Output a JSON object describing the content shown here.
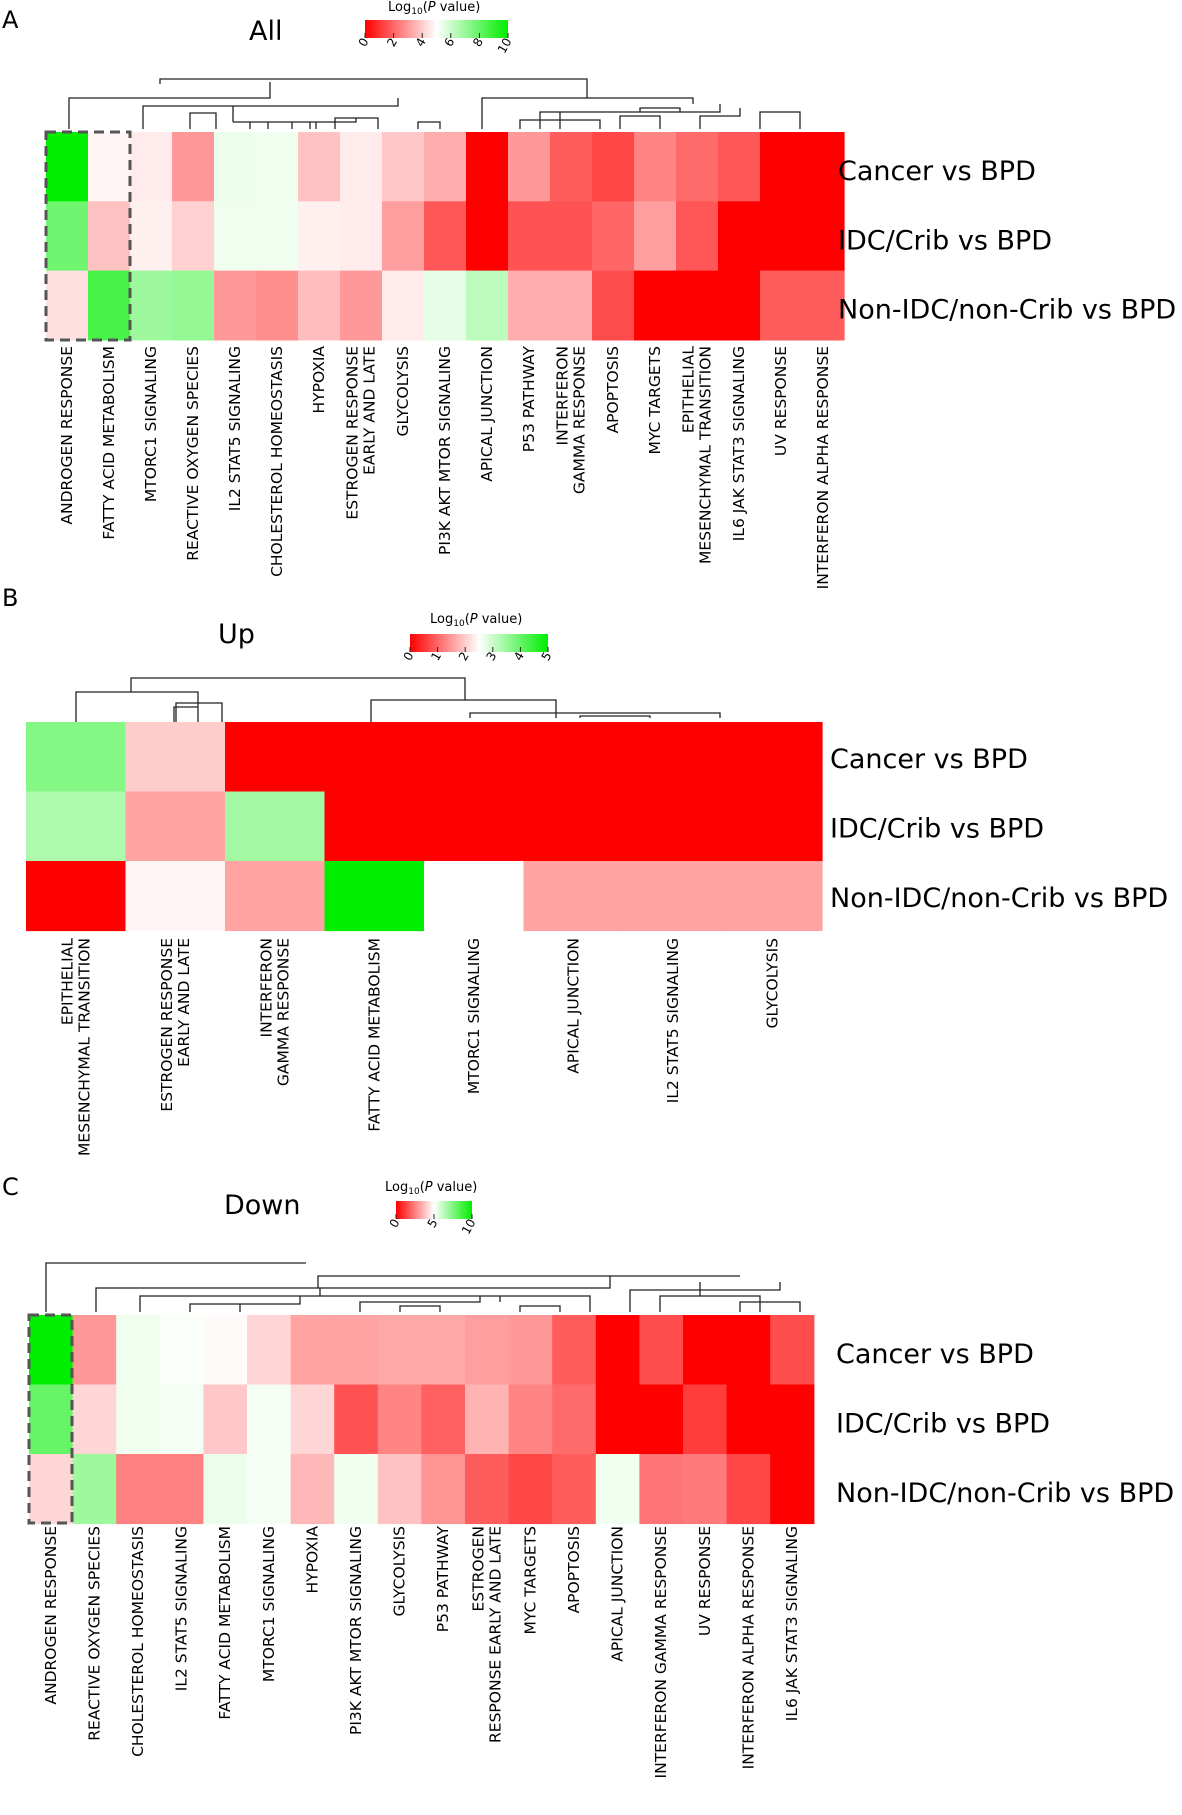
{
  "colors": {
    "low": "#ff0000",
    "mid": "#ffffff",
    "high": "#00ee00"
  },
  "chart_data": [
    {
      "type": "heatmap",
      "panel": "A",
      "title": "All",
      "legend": {
        "title_main": "Log",
        "title_sub": "10",
        "title_open": "(",
        "title_p": "P",
        "title_rest": " value)",
        "ticks": [
          0,
          2,
          4,
          6,
          8,
          10
        ],
        "range": [
          0,
          10
        ],
        "mid": 5
      },
      "rows": [
        "Cancer vs BPD",
        "IDC/Crib vs BPD",
        "Non-IDC/non-Crib vs BPD"
      ],
      "columns": [
        [
          "ANDROGEN RESPONSE"
        ],
        [
          "FATTY ACID METABOLISM"
        ],
        [
          "MTORC1 SIGNALING"
        ],
        [
          "REACTIVE OXYGEN SPECIES"
        ],
        [
          "IL2 STAT5 SIGNALING"
        ],
        [
          "CHOLESTEROL HOMEOSTASIS"
        ],
        [
          "HYPOXIA"
        ],
        [
          "ESTROGEN RESPONSE",
          "EARLY AND LATE"
        ],
        [
          "GLYCOLYSIS"
        ],
        [
          "PI3K AKT MTOR SIGNALING"
        ],
        [
          "APICAL JUNCTION"
        ],
        [
          "P53 PATHWAY"
        ],
        [
          "INTERFERON",
          "GAMMA RESPONSE"
        ],
        [
          "APOPTOSIS"
        ],
        [
          "MYC TARGETS"
        ],
        [
          "EPITHELIAL",
          "MESENCHYMAL TRANSITION"
        ],
        [
          "IL6 JAK STAT3 SIGNALING"
        ],
        [
          "UV RESPONSE"
        ],
        [
          "INTERFERON ALPHA RESPONSE"
        ]
      ],
      "values": [
        [
          10,
          4.8,
          4.6,
          3.0,
          5.4,
          5.3,
          3.8,
          4.6,
          3.9,
          3.4,
          0,
          3.0,
          1.8,
          1.4,
          2.6,
          2.1,
          1.7,
          0,
          0
        ],
        [
          7.8,
          3.8,
          4.7,
          4.1,
          5.3,
          5.3,
          4.7,
          4.6,
          3.1,
          1.7,
          0,
          1.6,
          1.6,
          2.0,
          3.1,
          1.7,
          0,
          0,
          0
        ],
        [
          4.4,
          8.6,
          6.9,
          7.1,
          3.0,
          2.8,
          3.7,
          3.0,
          4.6,
          5.5,
          6.3,
          3.4,
          3.4,
          1.5,
          0,
          0,
          0,
          1.8,
          1.8
        ]
      ],
      "highlighted_columns": [
        0,
        1
      ]
    },
    {
      "type": "heatmap",
      "panel": "B",
      "title": "Up",
      "legend": {
        "title_main": "Log",
        "title_sub": "10",
        "title_open": "(",
        "title_p": "P",
        "title_rest": " value)",
        "ticks": [
          0,
          1,
          2,
          3,
          4,
          5
        ],
        "range": [
          0,
          5
        ],
        "mid": 2.5
      },
      "rows": [
        "Cancer vs BPD",
        "IDC/Crib vs BPD",
        "Non-IDC/non-Crib vs BPD"
      ],
      "columns": [
        [
          "EPITHELIAL",
          "MESENCHYMAL TRANSITION"
        ],
        [
          "ESTROGEN RESPONSE",
          "EARLY AND LATE"
        ],
        [
          "INTERFERON",
          "GAMMA RESPONSE"
        ],
        [
          "FATTY ACID METABOLISM"
        ],
        [
          "MTORC1 SIGNALING"
        ],
        [
          "APICAL JUNCTION"
        ],
        [
          "IL2 STAT5 SIGNALING"
        ],
        [
          "GLYCOLYSIS"
        ]
      ],
      "values": [
        [
          3.7,
          2.0,
          0,
          0,
          0,
          0,
          0,
          0
        ],
        [
          3.3,
          1.6,
          3.4,
          0,
          0,
          0,
          0,
          0
        ],
        [
          0,
          2.4,
          1.6,
          5,
          null,
          1.6,
          1.6,
          1.6
        ]
      ]
    },
    {
      "type": "heatmap",
      "panel": "C",
      "title": "Down",
      "legend": {
        "title_main": "Log",
        "title_sub": "10",
        "title_open": "(",
        "title_p": "P",
        "title_rest": " value)",
        "ticks": [
          0,
          5,
          10
        ],
        "range": [
          0,
          10
        ],
        "mid": 5
      },
      "rows": [
        "Cancer vs BPD",
        "IDC/Crib vs BPD",
        "Non-IDC/non-Crib vs BPD"
      ],
      "columns": [
        [
          "ANDROGEN RESPONSE"
        ],
        [
          "REACTIVE OXYGEN SPECIES"
        ],
        [
          "CHOLESTEROL HOMEOSTASIS"
        ],
        [
          "IL2 STAT5 SIGNALING"
        ],
        [
          "FATTY ACID METABOLISM"
        ],
        [
          "MTORC1 SIGNALING"
        ],
        [
          "HYPOXIA"
        ],
        [
          "PI3K AKT MTOR SIGNALING"
        ],
        [
          "GLYCOLYSIS"
        ],
        [
          "P53 PATHWAY"
        ],
        [
          "ESTROGEN",
          "RESPONSE EARLY AND LATE"
        ],
        [
          "MYC TARGETS"
        ],
        [
          "APOPTOSIS"
        ],
        [
          "APICAL JUNCTION"
        ],
        [
          "INTERFERON GAMMA RESPONSE"
        ],
        [
          "UV RESPONSE"
        ],
        [
          "INTERFERON ALPHA RESPONSE"
        ],
        [
          "IL6 JAK STAT3 SIGNALING"
        ]
      ],
      "values": [
        [
          10,
          3.0,
          5.3,
          5.1,
          4.9,
          4.2,
          3.2,
          3.2,
          3.3,
          3.3,
          3.1,
          3.0,
          1.8,
          0,
          1.5,
          0,
          0,
          1.5
        ],
        [
          8.0,
          4.2,
          5.3,
          5.2,
          3.9,
          5.2,
          4.2,
          1.6,
          2.6,
          1.9,
          3.5,
          2.6,
          2.1,
          0,
          0,
          1.2,
          0,
          0
        ],
        [
          4.2,
          6.9,
          2.5,
          2.5,
          5.4,
          5.2,
          3.6,
          5.3,
          3.8,
          2.9,
          1.8,
          1.4,
          1.8,
          5.3,
          2.3,
          2.4,
          1.4,
          0
        ]
      ],
      "highlighted_columns": [
        0
      ]
    }
  ]
}
